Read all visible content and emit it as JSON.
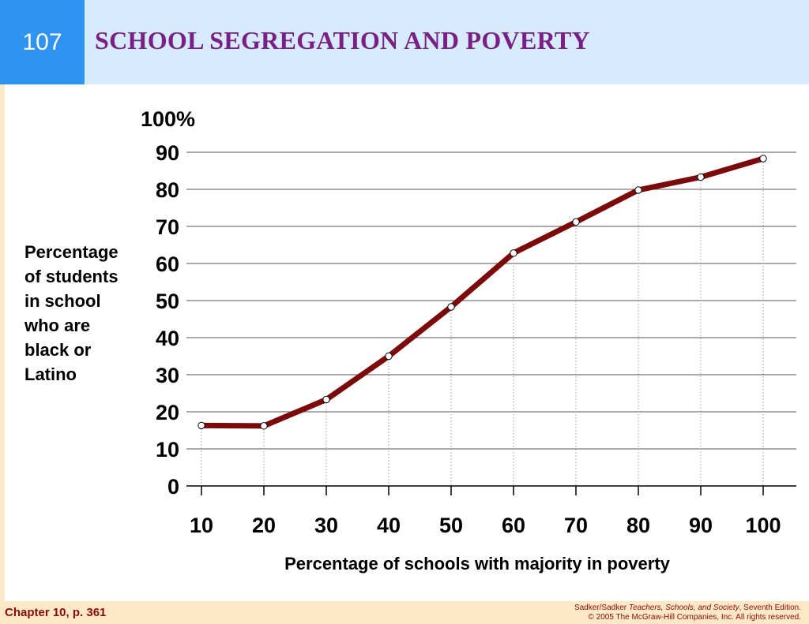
{
  "slide": {
    "number": "107",
    "title": "SCHOOL SEGREGATION AND POVERTY"
  },
  "footer": {
    "chapter": "Chapter 10, p. 361",
    "credit_author": "Sadker/Sadker ",
    "credit_book": "Teachers, Schools, and Society",
    "credit_edition": ", Seventh Edition.",
    "copyright": "© 2005 The McGraw-Hill Companies, Inc. All rights reserved."
  },
  "colors": {
    "slide_number_bg": "#2f93f2",
    "title_bar_bg": "#d6ecfe",
    "title_text": "#7a1f86",
    "footer_bg": "#fde9c8",
    "footer_text": "#8b0a0a",
    "series_line": "#7b0a0a"
  },
  "chart_data": {
    "type": "line",
    "xlabel": "Percentage of schools with majority in poverty",
    "ylabel": "Percentage\nof students\nin school\nwho are\nblack or\nLatino",
    "x": [
      10,
      20,
      30,
      40,
      50,
      60,
      70,
      80,
      90,
      100
    ],
    "x_tick_labels": [
      "10",
      "20",
      "30",
      "40",
      "50",
      "60",
      "70",
      "80",
      "90",
      "100"
    ],
    "y_tick_labels": [
      "0",
      "10",
      "20",
      "30",
      "40",
      "50",
      "60",
      "70",
      "80",
      "90",
      "100%"
    ],
    "series": [
      {
        "values": [
          16.3,
          16.2,
          23.3,
          35.0,
          48.3,
          62.8,
          71.2,
          79.8,
          83.3,
          88.3
        ]
      }
    ],
    "ylim": [
      0,
      100
    ],
    "grid": "horizontal",
    "legend": "none",
    "markers": "open-circle"
  }
}
